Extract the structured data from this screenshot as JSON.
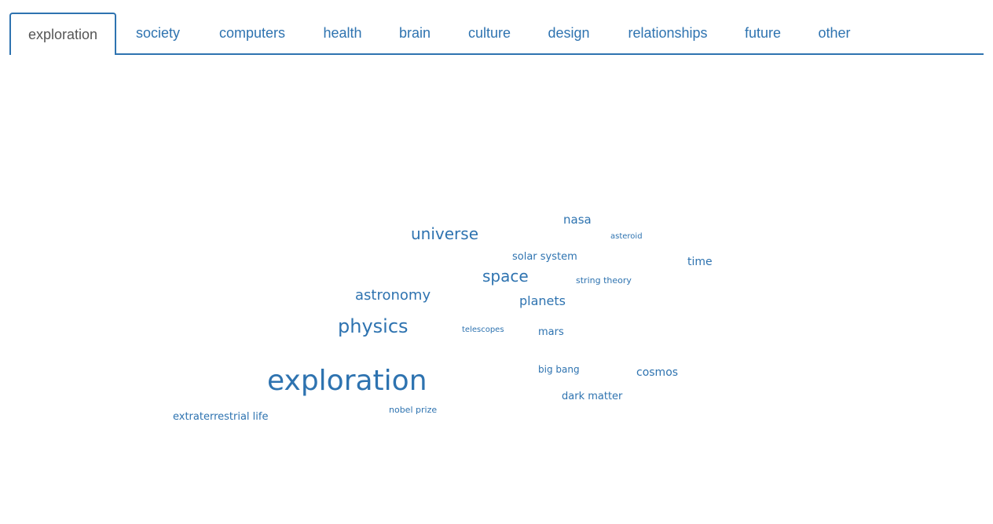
{
  "tabs": [
    {
      "label": "exploration",
      "active": true
    },
    {
      "label": "society"
    },
    {
      "label": "computers"
    },
    {
      "label": "health"
    },
    {
      "label": "brain"
    },
    {
      "label": "culture"
    },
    {
      "label": "design"
    },
    {
      "label": "relationships"
    },
    {
      "label": "future"
    },
    {
      "label": "other"
    }
  ],
  "cloud": {
    "words": [
      "exploration",
      "physics",
      "universe",
      "space",
      "astronomy",
      "planets",
      "nasa",
      "solar system",
      "time",
      "cosmos",
      "mars",
      "dark matter",
      "big bang",
      "extraterrestrial life",
      "string theory",
      "asteroid",
      "telescopes",
      "nobel prize"
    ]
  },
  "colors": {
    "accent": "#2e73b0",
    "active_tab_text": "#555555"
  }
}
